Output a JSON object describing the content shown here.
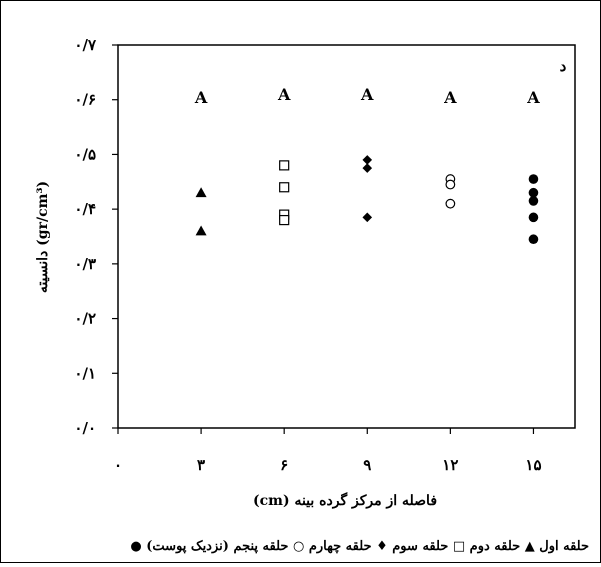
{
  "chart_data": {
    "type": "scatter",
    "panel_label": "د",
    "xlabel": "فاصله از مرکز گرده بینه (cm)",
    "ylabel": "دانسیته (gr/cm³)",
    "x_ticks": [
      0,
      3,
      6,
      9,
      12,
      15
    ],
    "x_tick_labels": [
      "۰",
      "۳",
      "۶",
      "۹",
      "۱۲",
      "۱۵"
    ],
    "y_ticks": [
      0,
      0.1,
      0.2,
      0.3,
      0.4,
      0.5,
      0.6,
      0.7
    ],
    "y_tick_labels": [
      "۰/۰",
      "۰/۱",
      "۰/۲",
      "۰/۳",
      "۰/۴",
      "۰/۵",
      "۰/۶",
      "۰/۷"
    ],
    "xlim": [
      0,
      16.5
    ],
    "ylim": [
      0,
      0.7
    ],
    "grid": false,
    "legend_position": "bottom",
    "legend_text": "حلقه اول ▲ حلقه دوم □ حلقه سوم ♦ حلقه چهارم ○ حلقه پنجم (نزدیک پوست) ●",
    "series": [
      {
        "name": "حلقه اول",
        "marker": "triangle",
        "x": [
          3,
          3
        ],
        "y": [
          0.43,
          0.36
        ]
      },
      {
        "name": "حلقه دوم",
        "marker": "square",
        "x": [
          6,
          6,
          6,
          6
        ],
        "y": [
          0.48,
          0.44,
          0.39,
          0.38
        ]
      },
      {
        "name": "حلقه سوم",
        "marker": "diamond",
        "x": [
          9,
          9,
          9
        ],
        "y": [
          0.49,
          0.475,
          0.385
        ]
      },
      {
        "name": "حلقه چهارم",
        "marker": "circle-open",
        "x": [
          12,
          12,
          12
        ],
        "y": [
          0.455,
          0.445,
          0.41
        ]
      },
      {
        "name": "حلقه پنجم (نزدیک پوست)",
        "marker": "circle-filled",
        "x": [
          15,
          15,
          15,
          15,
          15
        ],
        "y": [
          0.455,
          0.43,
          0.415,
          0.385,
          0.345
        ]
      }
    ],
    "annotations": [
      {
        "x": 3,
        "y": 0.605,
        "text": "A"
      },
      {
        "x": 6,
        "y": 0.61,
        "text": "A"
      },
      {
        "x": 9,
        "y": 0.61,
        "text": "A"
      },
      {
        "x": 12,
        "y": 0.605,
        "text": "A"
      },
      {
        "x": 15,
        "y": 0.605,
        "text": "A"
      }
    ]
  }
}
